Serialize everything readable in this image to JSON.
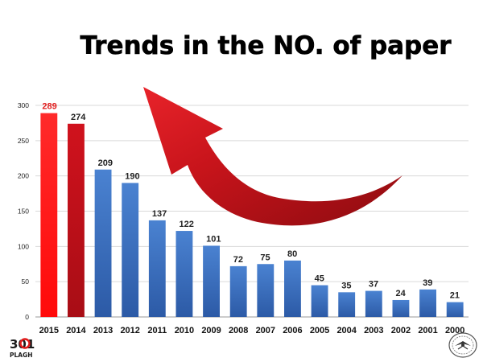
{
  "chart_data": {
    "type": "bar",
    "title": "Trends in the NO. of paper",
    "categories": [
      "2015",
      "2014",
      "2013",
      "2012",
      "2011",
      "2010",
      "2009",
      "2008",
      "2007",
      "2006",
      "2005",
      "2004",
      "2003",
      "2002",
      "2001",
      "2000"
    ],
    "values": [
      289,
      274,
      209,
      190,
      137,
      122,
      101,
      72,
      75,
      80,
      45,
      35,
      37,
      24,
      39,
      21
    ],
    "ylim": [
      0,
      300
    ],
    "yticks": [
      0,
      50,
      100,
      150,
      200,
      250,
      300
    ],
    "xlabel": "",
    "ylabel": "",
    "grid": true,
    "colors": {
      "bar_default": "#3d74c4",
      "bar_default_dark": "#2a57a3",
      "bar_highlight_1": "#ff1a1a",
      "bar_highlight_2": "#c0101a",
      "label_highlight": "#e11b1b",
      "label_default": "#222222",
      "arrow": "#c4141b",
      "grid": "#d9d9d9"
    },
    "highlight_indices": [
      0,
      1
    ],
    "annotation": "upward-trend-arrow"
  },
  "logos": {
    "left": "301 PLAGH",
    "left_top": "301",
    "left_bottom": "PLAGH",
    "right": "seal-emblem"
  }
}
